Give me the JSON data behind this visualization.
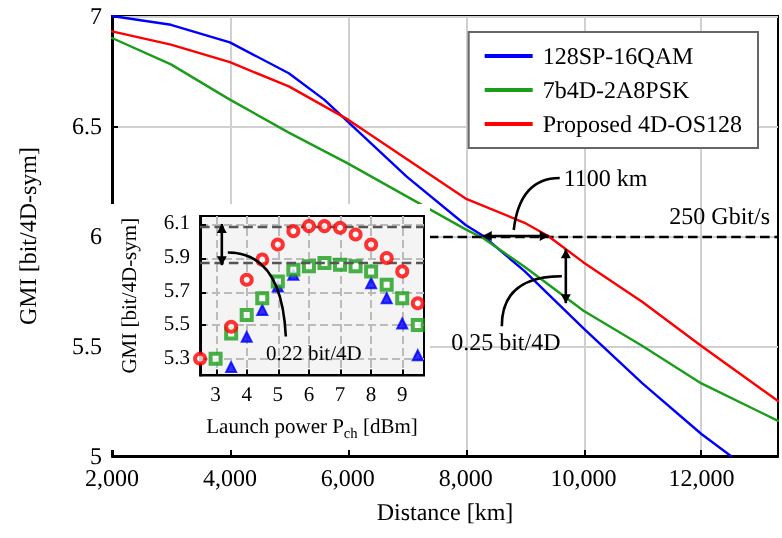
{
  "chart_data": [
    {
      "type": "line",
      "xlabel": "Distance [km]",
      "ylabel": "GMI [bit/4D-sym]",
      "xlim": [
        2000,
        13300
      ],
      "xticks": [
        {
          "value": 2000,
          "label": "2,000"
        },
        {
          "value": 4000,
          "label": "4,000"
        },
        {
          "value": 6000,
          "label": "6,000"
        },
        {
          "value": 8000,
          "label": "8,000"
        },
        {
          "value": 10000,
          "label": "10,000"
        },
        {
          "value": 12000,
          "label": "12,000"
        }
      ],
      "ylim": [
        5,
        7
      ],
      "yticks": [
        5,
        5.5,
        6,
        6.5,
        7
      ],
      "grid": true,
      "legend": "top right",
      "series": [
        {
          "name": "128SP-16QAM",
          "color": "#0000ff",
          "x": [
            2000,
            3000,
            4000,
            5000,
            5600,
            6000,
            7000,
            8000,
            8300,
            9000,
            10000,
            11000,
            12000,
            12500
          ],
          "values": [
            7.0,
            6.96,
            6.88,
            6.74,
            6.62,
            6.52,
            6.27,
            6.05,
            6.0,
            5.84,
            5.58,
            5.33,
            5.1,
            5.0
          ]
        },
        {
          "name": "7b4D-2A8PSK",
          "color": "#1a9e1a",
          "x": [
            2000,
            3000,
            4000,
            5000,
            6000,
            7000,
            8000,
            8300,
            9000,
            10000,
            11000,
            12000,
            13300
          ],
          "values": [
            6.9,
            6.78,
            6.62,
            6.47,
            6.33,
            6.18,
            6.03,
            5.99,
            5.86,
            5.66,
            5.5,
            5.33,
            5.16
          ]
        },
        {
          "name": "Proposed 4D-OS128",
          "color": "#ff0000",
          "x": [
            2000,
            3000,
            4000,
            5000,
            6000,
            7000,
            8000,
            9000,
            9400,
            10000,
            11000,
            12000,
            13300
          ],
          "values": [
            6.93,
            6.87,
            6.79,
            6.68,
            6.53,
            6.35,
            6.17,
            6.06,
            6.0,
            5.88,
            5.7,
            5.5,
            5.25
          ]
        }
      ],
      "ref_lines": [
        {
          "axis": "y",
          "value": 6,
          "label": "250 Gbit/s",
          "color": "#000000",
          "line_style": "dashed"
        }
      ],
      "annotations": [
        {
          "text": "1100 km",
          "x": 8850,
          "y": 6
        },
        {
          "text": "0.25 bit/4D",
          "x": 9700,
          "y": 5.94
        }
      ]
    },
    {
      "type": "scatter",
      "xlabel": "Launch power P$_{ch}$ [dBm]",
      "ylabel": "GMI [bit/4D-sym]",
      "xlim": [
        2.5,
        9.7
      ],
      "xticks": [
        3,
        4,
        5,
        6,
        7,
        8,
        9
      ],
      "ylim": [
        5.2,
        6.15
      ],
      "yticks": [
        5.3,
        5.5,
        5.7,
        5.9,
        6.1
      ],
      "grid": true,
      "series": [
        {
          "color": "#0000ff",
          "marker": "triangle",
          "x": [
            3.5,
            4,
            4.5,
            5,
            5.5,
            6,
            6.5,
            7,
            7.5,
            8,
            8.5,
            9,
            9.5
          ],
          "values": [
            5.25,
            5.43,
            5.59,
            5.73,
            5.8,
            null,
            null,
            null,
            null,
            5.75,
            5.66,
            5.51,
            5.32
          ]
        },
        {
          "color": "#1a9e1a",
          "marker": "square",
          "x": [
            3,
            3.5,
            4,
            4.5,
            5,
            5.5,
            6,
            6.5,
            7,
            7.5,
            8,
            8.5,
            9,
            9.5
          ],
          "values": [
            5.3,
            5.45,
            5.56,
            5.66,
            5.76,
            5.83,
            5.85,
            5.87,
            5.86,
            5.85,
            5.82,
            5.74,
            5.66,
            5.5
          ]
        },
        {
          "color": "#ff0000",
          "marker": "circle",
          "x": [
            2.5,
            3.5,
            4,
            4.5,
            5,
            5.5,
            6,
            6.5,
            7,
            7.5,
            8,
            8.5,
            9,
            9.5
          ],
          "values": [
            5.3,
            5.49,
            5.77,
            5.89,
            5.98,
            6.06,
            6.09,
            6.09,
            6.08,
            6.04,
            5.98,
            5.9,
            5.82,
            5.63
          ]
        }
      ],
      "ref_lines": [
        {
          "axis": "y",
          "value": 6.09,
          "color": "#555555",
          "line_style": "dashed"
        },
        {
          "axis": "y",
          "value": 5.87,
          "color": "#555555",
          "line_style": "dashed"
        }
      ],
      "annotations": [
        {
          "text": "0.22 bit/4D",
          "x": 3.2,
          "y": 5.98
        }
      ]
    }
  ]
}
